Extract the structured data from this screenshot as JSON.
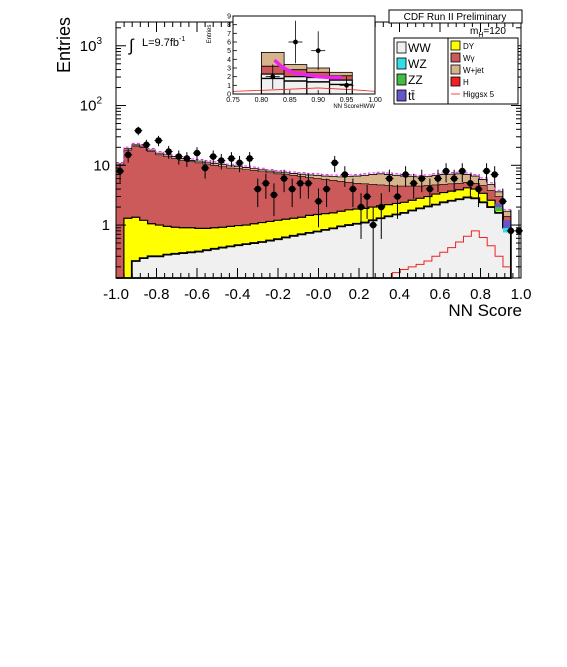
{
  "chart_data": [
    {
      "type": "area",
      "title": "CDF Run II Preliminary",
      "mass_label_prefix": "m",
      "mass_label_sub": "H",
      "mass_label_value": "=120",
      "lumi_prefix": "L=9.7fb",
      "lumi_exp": "-1",
      "integral_symbol": "∫",
      "xlabel": "NN Score",
      "ylabel": "Entries",
      "xlim": [
        -1.0,
        1.0
      ],
      "ylim": [
        0.13,
        2500
      ],
      "yscale": "log",
      "x_ticks": [
        "-1.0",
        "-0.8",
        "-0.6",
        "-0.4",
        "-0.2",
        "-0.0",
        "0.2",
        "0.4",
        "0.6",
        "0.8",
        "1.0"
      ],
      "y_ticks": [
        {
          "base": "1",
          "exp": "",
          "v": 1
        },
        {
          "base": "10",
          "exp": "",
          "v": 10
        },
        {
          "base": "10",
          "exp": "2",
          "v": 100
        },
        {
          "base": "10",
          "exp": "3",
          "v": 1000
        }
      ],
      "legend": [
        {
          "label": "WW",
          "color": "#f0f0f0"
        },
        {
          "label": "WZ",
          "color": "#33dde8"
        },
        {
          "label": "ZZ",
          "color": "#44bb44"
        },
        {
          "label": "tt̄",
          "color": "#6655cc"
        },
        {
          "label": "DY",
          "color": "#ffff00"
        },
        {
          "label": "Wγ",
          "color": "#cc5a5a"
        },
        {
          "label": "W+jet",
          "color": "#d8b48c"
        },
        {
          "label": "H",
          "color": "#ee2222"
        },
        {
          "label": "Higgsx 5",
          "color": "#ff4444"
        }
      ],
      "bin_edges": [
        -1.0,
        0.95
      ],
      "series": [
        {
          "name": "WW",
          "values": [
            0.13,
            0.13,
            0.25,
            0.28,
            0.3,
            0.3,
            0.32,
            0.33,
            0.34,
            0.35,
            0.36,
            0.38,
            0.4,
            0.42,
            0.44,
            0.46,
            0.48,
            0.5,
            0.52,
            0.55,
            0.58,
            0.62,
            0.66,
            0.7,
            0.74,
            0.78,
            0.83,
            0.88,
            0.95,
            1.0,
            1.05,
            1.1,
            1.2,
            1.3,
            1.4,
            1.5,
            1.6,
            1.75,
            1.9,
            2.05,
            2.2,
            2.4,
            2.55,
            2.7,
            2.9,
            2.8,
            2.4,
            2.0,
            1.6,
            0.9
          ]
        },
        {
          "name": "DY",
          "values": [
            0.13,
            1.3,
            1.35,
            1.2,
            1.05,
            1.0,
            0.95,
            0.92,
            0.9,
            0.9,
            0.88,
            0.88,
            0.9,
            0.92,
            0.95,
            0.98,
            1.0,
            1.05,
            1.1,
            1.15,
            1.2,
            1.25,
            1.3,
            1.35,
            1.45,
            1.5,
            1.55,
            1.6,
            1.7,
            1.8,
            1.85,
            1.9,
            2.0,
            2.1,
            2.2,
            2.3,
            2.4,
            2.6,
            2.8,
            3.0,
            3.3,
            3.5,
            3.7,
            3.9,
            4.2,
            4.0,
            3.4,
            2.6,
            2.0,
            1.0
          ]
        },
        {
          "name": "Wγ",
          "values": [
            10,
            18,
            21,
            20,
            17,
            15,
            14,
            13,
            12,
            11.5,
            11,
            10.5,
            10,
            9.5,
            9,
            8.8,
            8.5,
            8.2,
            7.8,
            7.5,
            7.2,
            7,
            6.8,
            6.5,
            6.2,
            6,
            5.8,
            5.6,
            5.4,
            5.2,
            5.0,
            4.9,
            4.8,
            4.7,
            4.6,
            4.5,
            4.5,
            4.5,
            4.5,
            4.6,
            4.7,
            4.8,
            4.9,
            5.0,
            5.2,
            5.0,
            4.6,
            3.8,
            3.0,
            1.4
          ]
        },
        {
          "name": "W+jet",
          "values": [
            10.5,
            19,
            22,
            21,
            18,
            16,
            15,
            14,
            13,
            12,
            11.8,
            11.3,
            10.8,
            10.3,
            9.8,
            9.5,
            9.2,
            8.8,
            8.4,
            8.0,
            7.7,
            7.5,
            7.3,
            7.1,
            6.9,
            6.8,
            6.6,
            6.5,
            6.4,
            6.5,
            6.6,
            6.8,
            7.0,
            7.2,
            7.0,
            6.8,
            6.6,
            6.5,
            6.4,
            6.5,
            6.8,
            7.0,
            7.1,
            7.2,
            7.0,
            6.6,
            5.8,
            4.8,
            3.6,
            1.7
          ]
        },
        {
          "name": "Higgsx 5",
          "values": [
            0.13,
            0.13,
            0.13,
            0.13,
            0.13,
            0.13,
            0.13,
            0.13,
            0.13,
            0.13,
            0.13,
            0.13,
            0.13,
            0.13,
            0.13,
            0.13,
            0.13,
            0.13,
            0.13,
            0.13,
            0.13,
            0.13,
            0.13,
            0.13,
            0.13,
            0.13,
            0.13,
            0.13,
            0.13,
            0.13,
            0.13,
            0.13,
            0.13,
            0.13,
            0.13,
            0.16,
            0.18,
            0.2,
            0.22,
            0.25,
            0.3,
            0.35,
            0.42,
            0.52,
            0.65,
            0.8,
            0.62,
            0.45,
            0.3,
            0.2
          ]
        }
      ],
      "data_points": {
        "x": [
          -0.98,
          -0.94,
          -0.89,
          -0.85,
          -0.79,
          -0.74,
          -0.69,
          -0.65,
          -0.6,
          -0.56,
          -0.52,
          -0.48,
          -0.43,
          -0.39,
          -0.34,
          -0.3,
          -0.26,
          -0.22,
          -0.17,
          -0.13,
          -0.09,
          -0.05,
          0.0,
          0.04,
          0.08,
          0.13,
          0.17,
          0.21,
          0.24,
          0.27,
          0.31,
          0.35,
          0.39,
          0.43,
          0.47,
          0.51,
          0.55,
          0.59,
          0.63,
          0.67,
          0.71,
          0.75,
          0.79,
          0.83,
          0.87,
          0.91,
          0.95,
          0.99
        ],
        "y": [
          8,
          15,
          38,
          22,
          26,
          17,
          14,
          13,
          16,
          9,
          14,
          12,
          13,
          11,
          13,
          4,
          5,
          3.2,
          6,
          4,
          5,
          5,
          2.5,
          4,
          11,
          7,
          4,
          2,
          3,
          1,
          2,
          6,
          3,
          7,
          5,
          6,
          4,
          6,
          8,
          6,
          8,
          5,
          4,
          8,
          7,
          2.5,
          0.8,
          0.8
        ]
      }
    },
    {
      "type": "area",
      "title": "",
      "xlabel": "NN ScoreHWW",
      "ylabel": "Entries",
      "xlim": [
        0.75,
        1.0
      ],
      "ylim": [
        0,
        9
      ],
      "x_ticks": [
        "0.75",
        "0.80",
        "0.85",
        "0.90",
        "0.95",
        "1.00"
      ],
      "y_ticks": [
        "0",
        "1",
        "2",
        "3",
        "4",
        "5",
        "6",
        "7",
        "8",
        "9"
      ],
      "bins": [
        0.8,
        0.84,
        0.88,
        0.92,
        0.96
      ],
      "stack_top": [
        4.8,
        3.4,
        3.0,
        2.5
      ],
      "wjet_base": [
        3.2,
        2.8,
        2.5,
        2.1
      ],
      "ww_top": [
        2.3,
        2.0,
        1.9,
        1.6
      ],
      "higgs_curve": {
        "x": [
          0.825,
          0.835,
          0.845,
          0.86,
          0.88,
          0.9,
          0.92,
          0.94
        ],
        "y": [
          3.8,
          3.2,
          2.8,
          2.4,
          2.2,
          2.0,
          1.9,
          1.9
        ]
      },
      "data_points": {
        "x": [
          0.82,
          0.86,
          0.9,
          0.95
        ],
        "y": [
          2.0,
          6.0,
          5.0,
          1.0
        ]
      }
    }
  ]
}
